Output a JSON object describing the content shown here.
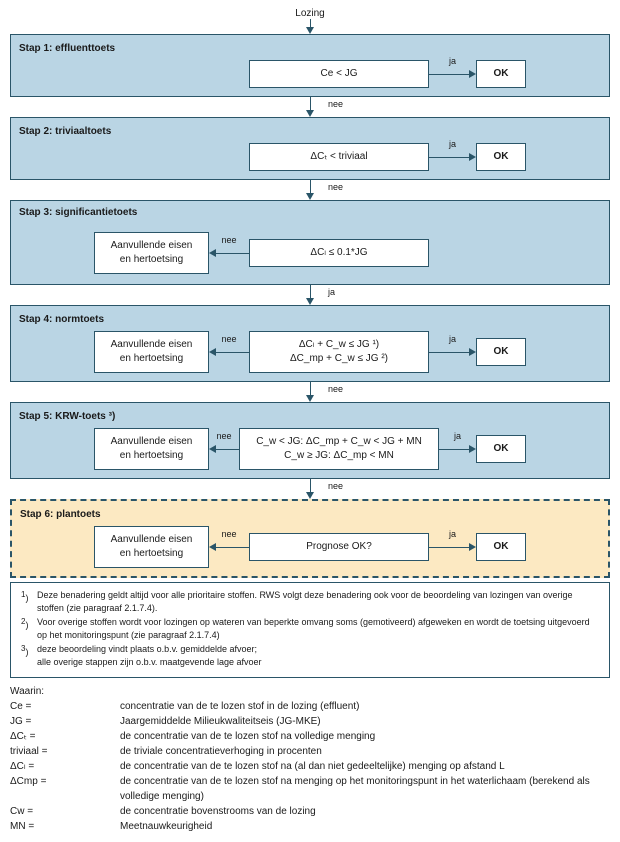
{
  "colors": {
    "step_bg": "#bad5e4",
    "step6_bg": "#fce9c2",
    "border": "#2a5568",
    "node_bg": "#ffffff",
    "text": "#1a1a1a",
    "arrow": "#2a5568"
  },
  "top_label": "Lozing",
  "labels": {
    "ja": "ja",
    "nee": "nee",
    "ok": "OK"
  },
  "steps": {
    "s1": {
      "title": "Stap 1: effluenttoets",
      "cond": "Ce < JG"
    },
    "s2": {
      "title": "Stap 2: triviaaltoets",
      "cond": "ΔCₜ < triviaal"
    },
    "s3": {
      "title": "Stap 3: significantietoets",
      "cond": "ΔCₗ ≤ 0.1*JG",
      "side": "Aanvullende eisen en hertoetsing"
    },
    "s4": {
      "title": "Stap 4: normtoets",
      "cond1": "ΔCₗ + C_w ≤ JG ¹)",
      "cond2": "ΔC_mp + C_w ≤ JG ²)",
      "side": "Aanvullende eisen en hertoetsing"
    },
    "s5": {
      "title": "Stap 5: KRW-toets ³)",
      "cond1": "C_w < JG: ΔC_mp + C_w < JG + MN",
      "cond2": "C_w ≥ JG: ΔC_mp < MN",
      "side": "Aanvullende eisen en hertoetsing"
    },
    "s6": {
      "title": "Stap 6: plantoets",
      "cond": "Prognose OK?",
      "side": "Aanvullende eisen en hertoetsing"
    }
  },
  "notes": {
    "n1": "Deze benadering geldt altijd voor alle prioritaire stoffen. RWS volgt deze benadering ook voor de beoordeling van lozingen van overige stoffen (zie paragraaf 2.1.7.4).",
    "n2": "Voor overige stoffen wordt voor lozingen op wateren van beperkte omvang soms (gemotiveerd) afgeweken en wordt de toetsing uitgevoerd op het monitoringspunt (zie paragraaf 2.1.7.4)",
    "n3a": "deze beoordeling vindt plaats o.b.v. gemiddelde afvoer;",
    "n3b": "alle overige stappen zijn o.b.v. maatgevende lage afvoer"
  },
  "defs_header": "Waarin:",
  "defs": [
    {
      "term": "Ce =",
      "def": "concentratie van de te lozen stof in de lozing (effluent)"
    },
    {
      "term": "JG =",
      "def": "Jaargemiddelde Milieukwaliteitseis (JG-MKE)"
    },
    {
      "term": "ΔCₜ =",
      "def": "de concentratie van de te lozen stof na volledige menging"
    },
    {
      "term": "triviaal =",
      "def": "de triviale concentratieverhoging in procenten"
    },
    {
      "term": "ΔCₗ =",
      "def": "de concentratie van de te lozen stof na (al dan niet gedeeltelijke) menging op afstand L"
    },
    {
      "term": "ΔCmp =",
      "def": "de concentratie van de te lozen stof na menging op het monitoringspunt in het waterlichaam (berekend als volledige menging)"
    },
    {
      "term": "Cw =",
      "def": "de concentratie bovenstrooms van de lozing"
    },
    {
      "term": "MN =",
      "def": "Meetnauwkeurigheid"
    }
  ]
}
